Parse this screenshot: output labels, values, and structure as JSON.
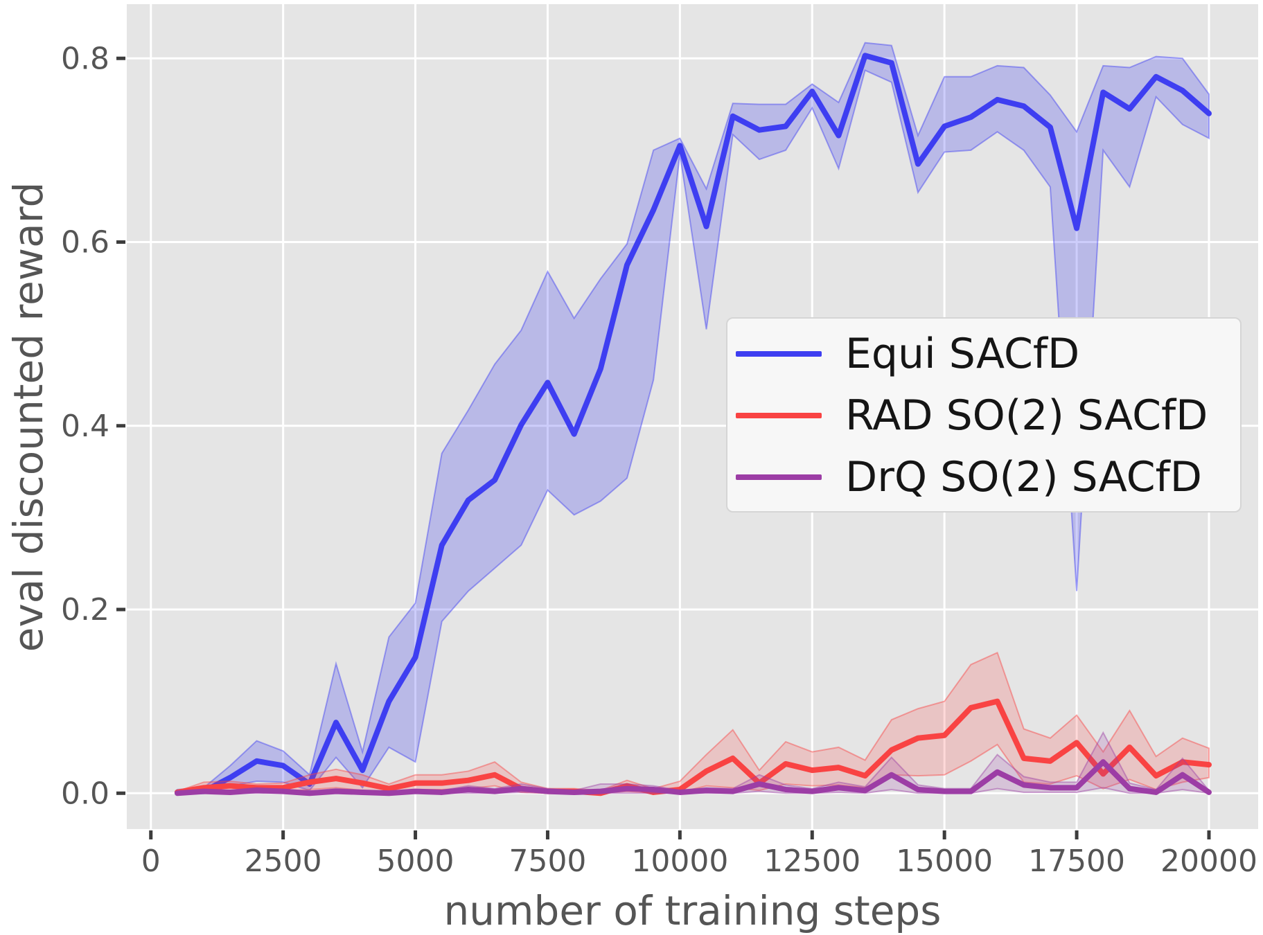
{
  "figure": {
    "background": "#ffffff",
    "plot_background": "#e5e5e5",
    "grid_color": "#ffffff",
    "tick_mark_color": "#3d3d3d",
    "tick_label_color": "#555555",
    "axis_label_color": "#555555"
  },
  "chart_data": {
    "type": "line",
    "title": "",
    "xlabel": "number of training steps",
    "ylabel": "eval discounted reward",
    "x_ticks": [
      0,
      2500,
      5000,
      7500,
      10000,
      12500,
      15000,
      17500,
      20000
    ],
    "y_ticks": [
      0.0,
      0.2,
      0.4,
      0.6,
      0.8
    ],
    "xlim": [
      -455,
      20930
    ],
    "ylim": [
      -0.039,
      0.859
    ],
    "grid": true,
    "legend_position": "center right",
    "x": [
      500,
      1000,
      1500,
      2000,
      2500,
      3000,
      3500,
      4000,
      4500,
      5000,
      5500,
      6000,
      6500,
      7000,
      7500,
      8000,
      8500,
      9000,
      9500,
      10000,
      10500,
      11000,
      11500,
      12000,
      12500,
      13000,
      13500,
      14000,
      14500,
      15000,
      15500,
      16000,
      16500,
      17000,
      17500,
      18000,
      18500,
      19000,
      19500,
      20000
    ],
    "series": [
      {
        "name": "Equi SACfD",
        "color": "#3e3ef1",
        "band_alpha": 0.26,
        "mean": [
          0.001,
          0.002,
          0.017,
          0.035,
          0.03,
          0.01,
          0.077,
          0.025,
          0.1,
          0.148,
          0.27,
          0.319,
          0.341,
          0.401,
          0.447,
          0.391,
          0.462,
          0.575,
          0.635,
          0.705,
          0.617,
          0.737,
          0.722,
          0.726,
          0.764,
          0.716,
          0.803,
          0.795,
          0.685,
          0.726,
          0.736,
          0.755,
          0.748,
          0.725,
          0.615,
          0.763,
          0.745,
          0.78,
          0.765,
          0.74
        ],
        "lower": [
          0.0,
          0.0,
          0.008,
          0.013,
          0.012,
          0.003,
          0.039,
          0.006,
          0.05,
          0.034,
          0.187,
          0.22,
          0.245,
          0.27,
          0.33,
          0.303,
          0.318,
          0.343,
          0.45,
          0.696,
          0.505,
          0.717,
          0.69,
          0.7,
          0.746,
          0.68,
          0.787,
          0.774,
          0.654,
          0.698,
          0.7,
          0.72,
          0.7,
          0.66,
          0.22,
          0.7,
          0.66,
          0.758,
          0.728,
          0.713
        ],
        "upper": [
          0.004,
          0.006,
          0.03,
          0.057,
          0.046,
          0.02,
          0.141,
          0.045,
          0.17,
          0.207,
          0.37,
          0.417,
          0.467,
          0.504,
          0.568,
          0.517,
          0.56,
          0.598,
          0.7,
          0.713,
          0.658,
          0.751,
          0.75,
          0.75,
          0.772,
          0.752,
          0.817,
          0.814,
          0.716,
          0.78,
          0.78,
          0.792,
          0.79,
          0.76,
          0.72,
          0.792,
          0.79,
          0.802,
          0.8,
          0.761
        ]
      },
      {
        "name": "RAD SO(2) SACfD",
        "color": "#f94343",
        "band_alpha": 0.2,
        "mean": [
          0.001,
          0.006,
          0.008,
          0.006,
          0.006,
          0.012,
          0.016,
          0.011,
          0.005,
          0.011,
          0.011,
          0.014,
          0.02,
          0.005,
          0.002,
          0.002,
          0.0,
          0.008,
          0.001,
          0.004,
          0.024,
          0.038,
          0.011,
          0.032,
          0.025,
          0.028,
          0.019,
          0.047,
          0.06,
          0.063,
          0.093,
          0.1,
          0.038,
          0.035,
          0.055,
          0.021,
          0.05,
          0.019,
          0.034,
          0.031
        ],
        "lower": [
          0.0,
          0.002,
          0.003,
          0.002,
          0.002,
          0.004,
          0.006,
          0.003,
          0.001,
          0.004,
          0.004,
          0.005,
          0.008,
          0.001,
          0.0,
          0.0,
          0.0,
          0.002,
          0.0,
          0.001,
          0.008,
          0.006,
          0.003,
          0.01,
          0.008,
          0.009,
          0.006,
          0.02,
          0.019,
          0.02,
          0.035,
          0.053,
          0.012,
          0.01,
          0.019,
          0.005,
          0.015,
          0.004,
          0.012,
          0.017
        ],
        "upper": [
          0.002,
          0.012,
          0.013,
          0.01,
          0.011,
          0.02,
          0.026,
          0.02,
          0.01,
          0.02,
          0.02,
          0.024,
          0.034,
          0.012,
          0.005,
          0.005,
          0.003,
          0.014,
          0.005,
          0.013,
          0.042,
          0.069,
          0.025,
          0.056,
          0.045,
          0.05,
          0.036,
          0.08,
          0.092,
          0.1,
          0.14,
          0.153,
          0.07,
          0.06,
          0.085,
          0.045,
          0.09,
          0.04,
          0.06,
          0.049
        ]
      },
      {
        "name": "DrQ SO(2) SACfD",
        "color": "#9c3da5",
        "band_alpha": 0.2,
        "mean": [
          0.0,
          0.002,
          0.001,
          0.003,
          0.002,
          0.0,
          0.002,
          0.001,
          0.0,
          0.002,
          0.001,
          0.004,
          0.002,
          0.005,
          0.002,
          0.001,
          0.002,
          0.005,
          0.004,
          0.001,
          0.003,
          0.002,
          0.01,
          0.004,
          0.002,
          0.006,
          0.003,
          0.02,
          0.004,
          0.002,
          0.002,
          0.023,
          0.009,
          0.006,
          0.006,
          0.034,
          0.005,
          0.001,
          0.02,
          0.001
        ],
        "lower": [
          0.0,
          0.0,
          0.0,
          0.0,
          0.0,
          0.0,
          0.0,
          0.0,
          0.0,
          0.0,
          0.0,
          0.0,
          0.0,
          0.001,
          0.0,
          0.0,
          0.0,
          0.0,
          0.0,
          0.0,
          0.0,
          0.0,
          0.002,
          0.0,
          0.0,
          0.001,
          0.0,
          0.004,
          0.0,
          0.0,
          0.0,
          0.005,
          0.001,
          0.001,
          0.001,
          0.006,
          0.0,
          0.0,
          0.004,
          0.0
        ],
        "upper": [
          0.001,
          0.004,
          0.003,
          0.006,
          0.004,
          0.002,
          0.005,
          0.003,
          0.002,
          0.004,
          0.003,
          0.008,
          0.005,
          0.01,
          0.005,
          0.003,
          0.01,
          0.01,
          0.008,
          0.003,
          0.006,
          0.005,
          0.02,
          0.009,
          0.005,
          0.012,
          0.007,
          0.039,
          0.009,
          0.005,
          0.005,
          0.042,
          0.018,
          0.012,
          0.012,
          0.066,
          0.011,
          0.004,
          0.038,
          0.003
        ]
      }
    ]
  }
}
